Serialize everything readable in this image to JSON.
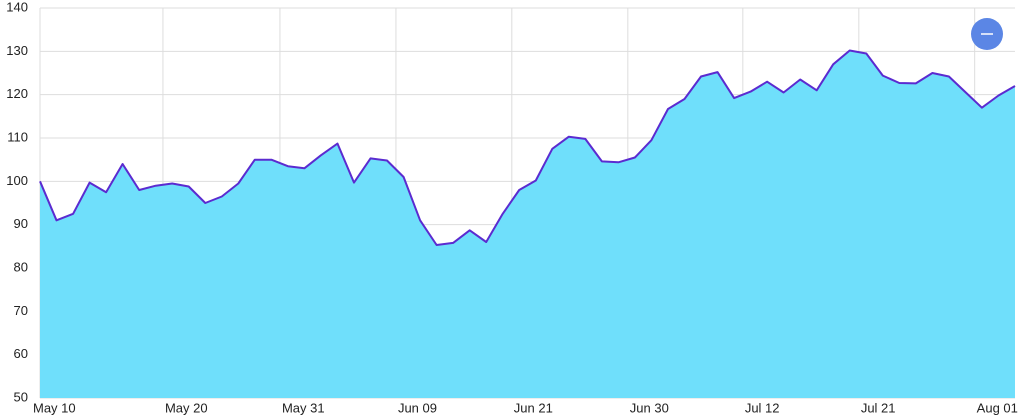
{
  "chart_data": {
    "type": "area",
    "x": [
      0,
      1,
      2,
      3,
      4,
      5,
      6,
      7,
      8,
      9,
      10,
      11,
      12,
      13,
      14,
      15,
      16,
      17,
      18,
      19,
      20,
      21,
      22,
      23,
      24,
      25,
      26,
      27,
      28,
      29,
      30,
      31,
      32,
      33,
      34,
      35,
      36,
      37,
      38,
      39,
      40,
      41,
      42,
      43,
      44,
      45,
      46,
      47,
      48,
      49,
      50,
      51,
      52,
      53,
      54,
      55,
      56,
      57,
      58,
      59
    ],
    "series": [
      {
        "color": "#5b2bd0",
        "fill": "#6fdffb",
        "values": [
          100,
          91,
          92.5,
          99.7,
          97.5,
          104,
          98,
          99,
          99.5,
          98.8,
          95,
          96.5,
          99.5,
          105,
          105,
          103.5,
          103,
          106,
          108.7,
          99.7,
          105.3,
          104.8,
          101,
          91,
          85.3,
          85.8,
          88.7,
          86,
          92.5,
          98,
          100.2,
          107.5,
          110.3,
          109.8,
          104.6,
          104.4,
          105.5,
          109.5,
          116.7,
          119,
          124.2,
          125.2,
          119.2,
          120.7,
          123,
          120.5,
          123.5,
          121,
          127,
          130.2,
          129.5,
          124.4,
          122.7,
          122.6,
          125,
          124.2,
          120.6,
          117,
          119.8,
          122
        ]
      }
    ],
    "xlim": [
      0,
      59
    ],
    "xticks": [
      {
        "value": 0,
        "label": "May 10"
      },
      {
        "value": 7.44,
        "label": "May 20"
      },
      {
        "value": 14.52,
        "label": "May 31"
      },
      {
        "value": 21.54,
        "label": "Jun 09"
      },
      {
        "value": 28.55,
        "label": "Jun 21"
      },
      {
        "value": 35.57,
        "label": "Jun 30"
      },
      {
        "value": 42.53,
        "label": "Jul 12"
      },
      {
        "value": 49.55,
        "label": "Jul 21"
      },
      {
        "value": 56.56,
        "label": "Aug 01"
      }
    ],
    "ylim": [
      50,
      140
    ],
    "yticks": [
      50,
      60,
      70,
      80,
      90,
      100,
      110,
      120,
      130,
      140
    ],
    "grid": true
  }
}
